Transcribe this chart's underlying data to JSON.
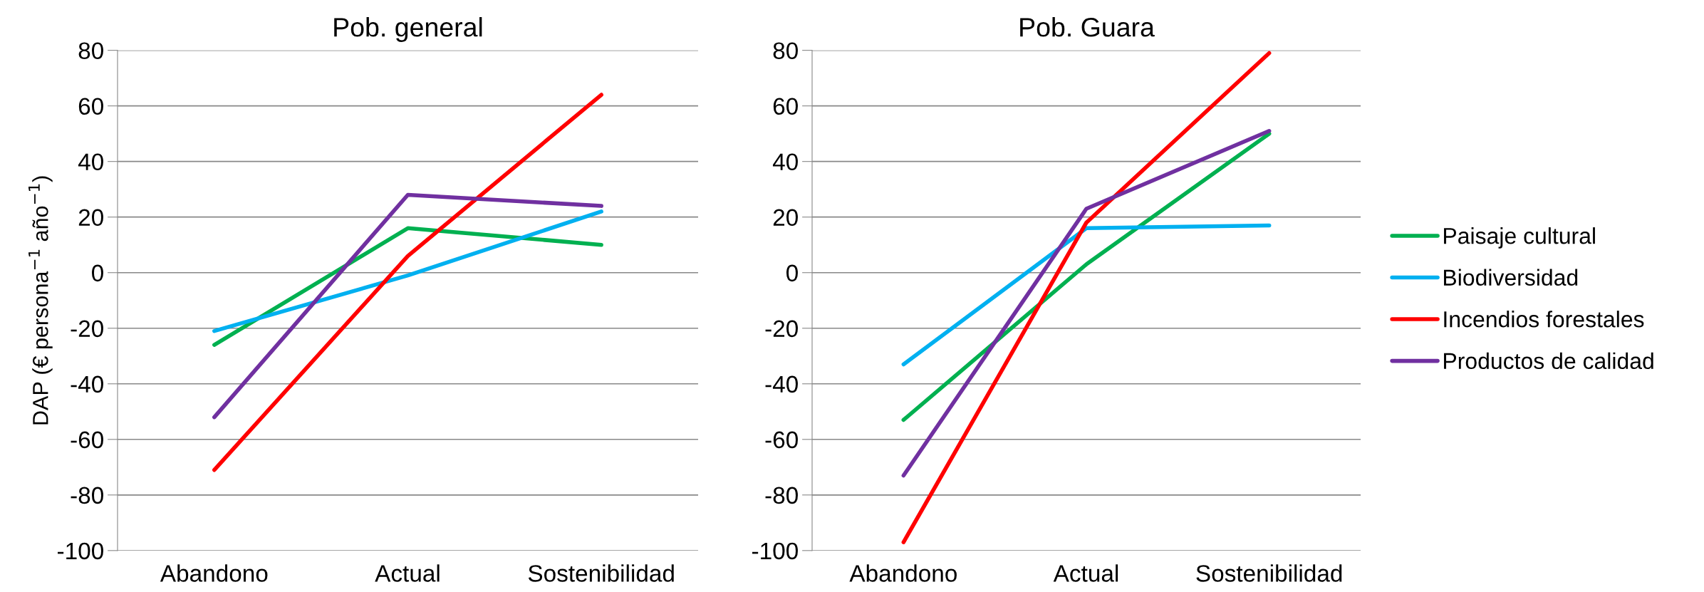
{
  "chart_data": [
    {
      "type": "line",
      "title": "Pob. general",
      "ylabel": "DAP (€ persona$^{−1}$ año$^{−1}$)",
      "categories": [
        "Abandono",
        "Actual",
        "Sostenibilidad"
      ],
      "ylim": [
        -100,
        80
      ],
      "yticks": [
        -100,
        -80,
        -60,
        -40,
        -20,
        0,
        20,
        40,
        60,
        80
      ],
      "grid": "y",
      "series": [
        {
          "color": "#00b050",
          "values": [
            -26,
            16,
            10
          ]
        },
        {
          "color": "#00b0f0",
          "values": [
            -21,
            -1,
            22
          ]
        },
        {
          "color": "#ff0000",
          "values": [
            -71,
            6,
            64
          ]
        },
        {
          "color": "#7030a0",
          "values": [
            -52,
            28,
            24
          ]
        }
      ]
    },
    {
      "type": "line",
      "title": "Pob. Guara",
      "categories": [
        "Abandono",
        "Actual",
        "Sostenibilidad"
      ],
      "ylim": [
        -100,
        80
      ],
      "yticks": [
        -100,
        -80,
        -60,
        -40,
        -20,
        0,
        20,
        40,
        60,
        80
      ],
      "grid": "y",
      "legend": "right",
      "series": [
        {
          "name": "Paisaje cultural",
          "color": "#00b050",
          "values": [
            -53,
            3,
            50
          ]
        },
        {
          "name": "Biodiversidad",
          "color": "#00b0f0",
          "values": [
            -33,
            16,
            17
          ]
        },
        {
          "name": "Incendios forestales",
          "color": "#ff0000",
          "values": [
            -97,
            18,
            79
          ]
        },
        {
          "name": "Productos de calidad",
          "color": "#7030a0",
          "values": [
            -73,
            23,
            51
          ]
        }
      ]
    }
  ]
}
